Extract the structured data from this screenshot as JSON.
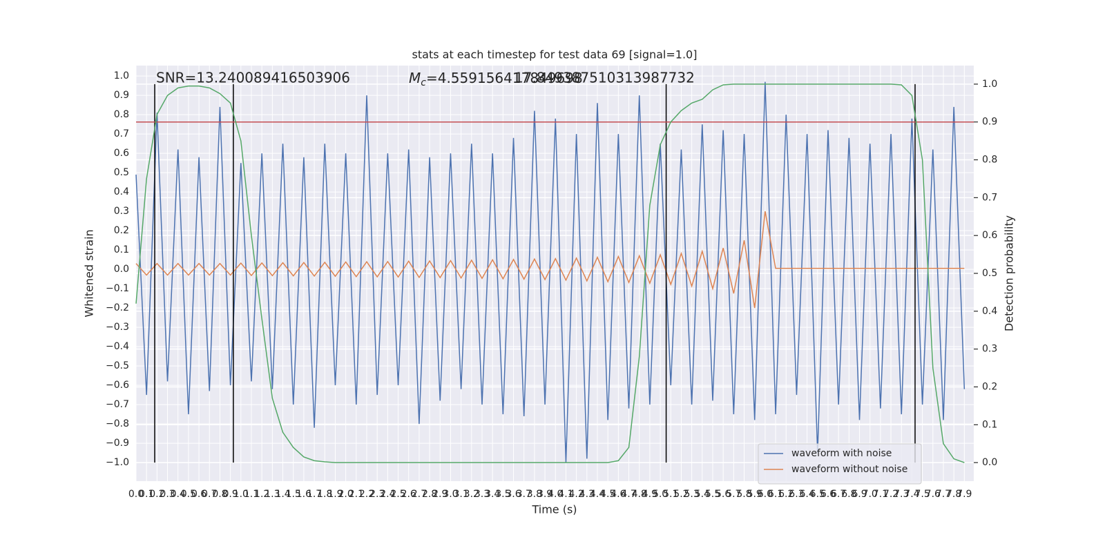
{
  "chart_data": {
    "type": "line",
    "title": "stats at each timestep for test data 69 [signal=1.0]",
    "x_label": "Time (s)",
    "y_label": "Whitened strain",
    "y2_label": "Detection probability",
    "annotations": {
      "snr": "SNR=13.240089416503906",
      "mc_symbol": "M",
      "mc_subscript": "c",
      "mc_text": "=4.559156417849698",
      "extra": "17.849387510313987732"
    },
    "grid": true,
    "legend": "lower right",
    "xlim": [
      0,
      7.99
    ],
    "ylim": [
      -1.096,
      1.054
    ],
    "y2lim": [
      -0.049,
      1.049
    ],
    "xticks": [
      {
        "value": 0,
        "label": "0.0"
      },
      0.1,
      0.2,
      0.3,
      0.4,
      0.5,
      0.6,
      0.7,
      0.8,
      0.9,
      {
        "value": 1,
        "label": "1.0"
      },
      1.1,
      1.2,
      1.3,
      1.4,
      1.5,
      1.6,
      1.7,
      1.8,
      1.9,
      {
        "value": 2,
        "label": "2.0"
      },
      2.1,
      2.2,
      2.3,
      2.4,
      2.5,
      2.6,
      2.7,
      2.8,
      2.9,
      {
        "value": 3,
        "label": "3.0"
      },
      3.1,
      3.2,
      3.3,
      3.4,
      3.5,
      3.6,
      3.7,
      3.8,
      3.9,
      {
        "value": 4,
        "label": "4.0"
      },
      4.1,
      4.2,
      4.3,
      4.4,
      4.5,
      4.6,
      4.7,
      4.8,
      4.9,
      {
        "value": 5,
        "label": "5.0"
      },
      5.1,
      5.2,
      5.3,
      5.4,
      5.5,
      5.6,
      5.7,
      5.8,
      5.9,
      {
        "value": 6,
        "label": "6.0"
      },
      6.1,
      6.2,
      6.3,
      6.4,
      6.5,
      6.6,
      6.7,
      6.8,
      6.9,
      {
        "value": 7,
        "label": "7.0"
      },
      7.1,
      7.2,
      7.3,
      7.4,
      7.5,
      7.6,
      7.7,
      7.8,
      7.9
    ],
    "yticks": [
      {
        "value": 1,
        "label": "1.0"
      },
      0.9,
      0.8,
      0.7,
      0.6,
      0.5,
      0.4,
      0.3,
      0.2,
      0.1,
      {
        "value": 0,
        "label": "0.0"
      },
      {
        "value": -0.1,
        "label": "−0.1"
      },
      {
        "value": -0.2,
        "label": "−0.2"
      },
      {
        "value": -0.3,
        "label": "−0.3"
      },
      {
        "value": -0.4,
        "label": "−0.4"
      },
      {
        "value": -0.5,
        "label": "−0.5"
      },
      {
        "value": -0.6,
        "label": "−0.6"
      },
      {
        "value": -0.7,
        "label": "−0.7"
      },
      {
        "value": -0.8,
        "label": "−0.8"
      },
      {
        "value": -0.9,
        "label": "−0.9"
      },
      {
        "value": -1,
        "label": "−1.0"
      }
    ],
    "y2ticks": [
      {
        "value": 0,
        "label": "0.0"
      },
      0.1,
      0.2,
      0.3,
      0.4,
      0.5,
      0.6,
      0.7,
      0.8,
      0.9,
      {
        "value": 1,
        "label": "1.0"
      }
    ],
    "x": [
      0,
      0.1,
      0.2,
      0.3,
      0.4,
      0.5,
      0.6,
      0.7,
      0.8,
      0.9,
      1,
      1.1,
      1.2,
      1.3,
      1.4,
      1.5,
      1.6,
      1.7,
      1.8,
      1.9,
      2,
      2.1,
      2.2,
      2.3,
      2.4,
      2.5,
      2.6,
      2.7,
      2.8,
      2.9,
      3,
      3.1,
      3.2,
      3.3,
      3.4,
      3.5,
      3.6,
      3.7,
      3.8,
      3.9,
      4,
      4.1,
      4.2,
      4.3,
      4.4,
      4.5,
      4.6,
      4.7,
      4.8,
      4.9,
      5,
      5.1,
      5.2,
      5.3,
      5.4,
      5.5,
      5.6,
      5.7,
      5.8,
      5.9,
      6,
      6.1,
      6.2,
      6.3,
      6.4,
      6.5,
      6.6,
      6.7,
      6.8,
      6.9,
      7,
      7.1,
      7.2,
      7.3,
      7.4,
      7.5,
      7.6,
      7.7,
      7.8,
      7.9
    ],
    "series": [
      {
        "name": "waveform with noise",
        "color": "#4c72b0",
        "values": [
          0.49,
          -0.65,
          0.81,
          -0.58,
          0.62,
          -0.75,
          0.58,
          -0.63,
          0.84,
          -0.6,
          0.55,
          -0.58,
          0.6,
          -0.62,
          0.65,
          -0.7,
          0.58,
          -0.82,
          0.65,
          -0.6,
          0.6,
          -0.7,
          0.9,
          -0.65,
          0.6,
          -0.6,
          0.62,
          -0.8,
          0.58,
          -0.68,
          0.6,
          -0.62,
          0.65,
          -0.7,
          0.6,
          -0.75,
          0.68,
          -0.76,
          0.82,
          -0.7,
          0.78,
          -1.0,
          0.7,
          -0.98,
          0.86,
          -0.78,
          0.7,
          -0.72,
          0.9,
          -0.7,
          0.65,
          -0.6,
          0.62,
          -0.7,
          0.75,
          -0.68,
          0.72,
          -0.75,
          0.7,
          -0.78,
          0.97,
          -0.75,
          0.8,
          -0.65,
          0.7,
          -0.95,
          0.72,
          -0.7,
          0.68,
          -0.78,
          0.65,
          -0.72,
          0.7,
          -0.75,
          0.78,
          -0.7,
          0.62,
          -0.78,
          0.84,
          -0.62
        ]
      },
      {
        "name": "waveform without noise",
        "color": "#dd8452",
        "values": [
          0.03,
          -0.03,
          0.03,
          -0.03,
          0.03,
          -0.03,
          0.03,
          -0.03,
          0.03,
          -0.03,
          0.032,
          -0.032,
          0.033,
          -0.033,
          0.034,
          -0.034,
          0.035,
          -0.035,
          0.036,
          -0.036,
          0.038,
          -0.038,
          0.039,
          -0.039,
          0.04,
          -0.04,
          0.042,
          -0.042,
          0.043,
          -0.043,
          0.045,
          -0.045,
          0.047,
          -0.047,
          0.049,
          -0.049,
          0.051,
          -0.051,
          0.053,
          -0.053,
          0.055,
          -0.056,
          0.058,
          -0.06,
          0.062,
          -0.064,
          0.066,
          -0.068,
          0.07,
          -0.072,
          0.075,
          -0.078,
          0.082,
          -0.087,
          0.093,
          -0.1,
          0.11,
          -0.125,
          0.15,
          -0.2,
          0.3,
          0.005,
          0.005,
          0.005,
          0.005,
          0.005,
          0.005,
          0.005,
          0.005,
          0.005,
          0.005,
          0.005,
          0.005,
          0.005,
          0.005,
          0.005,
          0.005,
          0.005,
          0.005,
          0.005
        ]
      },
      {
        "color": "#55a868",
        "axis": "y2",
        "values": [
          0.42,
          0.75,
          0.92,
          0.97,
          0.99,
          0.995,
          0.995,
          0.99,
          0.975,
          0.95,
          0.85,
          0.6,
          0.38,
          0.17,
          0.08,
          0.04,
          0.015,
          0.005,
          0.002,
          0,
          0,
          0,
          0,
          0,
          0,
          0,
          0,
          0,
          0,
          0,
          0,
          0,
          0,
          0,
          0,
          0,
          0,
          0,
          0,
          0,
          0,
          0,
          0,
          0,
          0,
          0,
          0.005,
          0.04,
          0.28,
          0.68,
          0.84,
          0.9,
          0.93,
          0.95,
          0.96,
          0.985,
          0.998,
          1,
          1,
          1,
          1,
          1,
          1,
          1,
          1,
          1,
          1,
          1,
          1,
          1,
          1,
          1,
          1,
          0.998,
          0.97,
          0.8,
          0.25,
          0.05,
          0.01,
          0
        ]
      }
    ],
    "threshold": {
      "value": 0.9,
      "axis": "y2",
      "color": "#c44e52"
    },
    "vlines": {
      "x": [
        0.178,
        0.928,
        5.056,
        7.43
      ],
      "ymin": 0,
      "ymax": 1,
      "axis": "y2",
      "color": "#000000"
    }
  }
}
